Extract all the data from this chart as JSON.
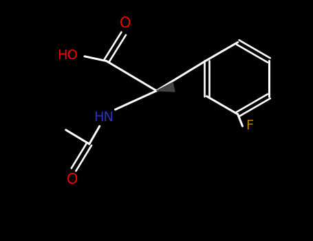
{
  "background_color": "#000000",
  "bond_color": "#ffffff",
  "atom_colors": {
    "O": "#ff0000",
    "N": "#3333bb",
    "F": "#b8860b",
    "C": "#ffffff",
    "H": "#ffffff"
  },
  "line_width": 2.2,
  "figsize": [
    4.55,
    3.5
  ],
  "dpi": 100,
  "font_size_atoms": 14
}
